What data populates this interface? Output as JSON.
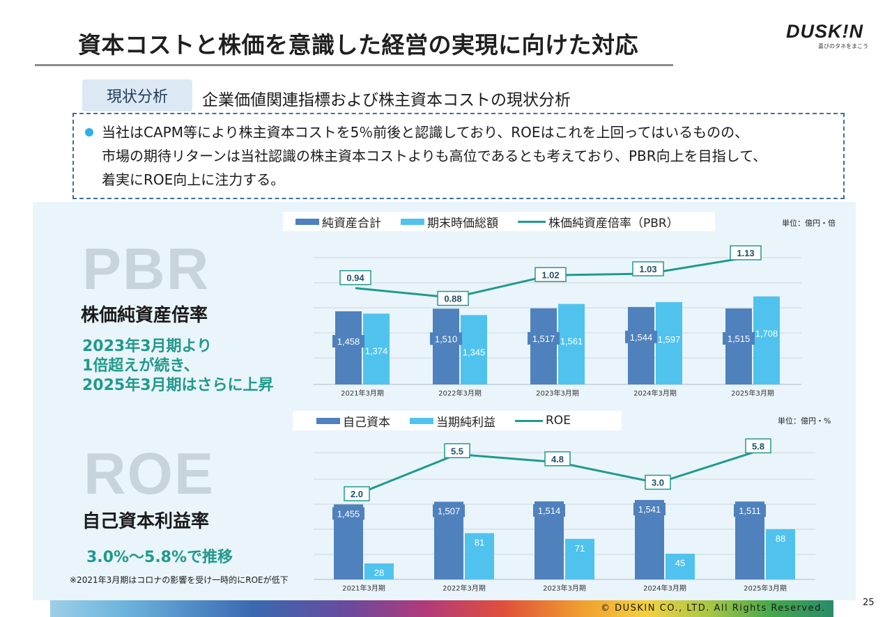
{
  "header": {
    "title": "資本コストと株価を意識した経営の実現に向けた対応",
    "logo_text": "DUSK!N",
    "logo_tagline": "喜びのタネをまこう"
  },
  "section": {
    "badge": "現状分析",
    "subtitle": "企業価値関連指標および株主資本コストの現状分析"
  },
  "note": {
    "lines": [
      "当社はCAPM等により株主資本コストを5％前後と認識しており、ROEはこれを上回ってはいるものの、",
      "市場の期待リターンは当社認識の株主資本コストよりも高位であるとも考えており、PBR向上を目指して、",
      "着実にROE向上に注力する。"
    ]
  },
  "pbr": {
    "big_label": "PBR",
    "name": "株価純資産倍率",
    "desc_lines": [
      "2023年3月期より",
      "1倍超えが続き、",
      "2025年3月期はさらに上昇"
    ]
  },
  "roe": {
    "big_label": "ROE",
    "name": "自己資本利益率",
    "desc": "3.0%～5.8%で推移",
    "note": "※2021年3月期はコロナの影響を受け一時的にROEが低下"
  },
  "colors": {
    "dark_bar": "#4f81bd",
    "light_bar": "#4fc3ee",
    "line": "#1f9a8c",
    "panel": "#eaf4fb"
  },
  "chart_data": [
    {
      "type": "bar",
      "unit": "単位：億円・倍",
      "categories": [
        "2021年3月期",
        "2022年3月期",
        "2023年3月期",
        "2024年3月期",
        "2025年3月期"
      ],
      "series": [
        {
          "name": "純資産合計",
          "kind": "bar",
          "values": [
            1458,
            1510,
            1517,
            1544,
            1515
          ],
          "labels": [
            "1,458",
            "1,510",
            "1,517",
            "1,544",
            "1,515"
          ]
        },
        {
          "name": "期末時価総額",
          "kind": "bar",
          "values": [
            1374,
            1345,
            1561,
            1597,
            1708
          ],
          "labels": [
            "1,374",
            "1,345",
            "1,561",
            "1,597",
            "1,708"
          ]
        },
        {
          "name": "株価純資産倍率（PBR）",
          "kind": "line",
          "values": [
            0.94,
            0.88,
            1.02,
            1.03,
            1.13
          ],
          "labels": [
            "0.94",
            "0.88",
            "1.02",
            "1.03",
            "1.13"
          ]
        }
      ],
      "bar_ylim": [
        0,
        1800
      ],
      "line_ylim": [
        0.6,
        1.2
      ]
    },
    {
      "type": "bar",
      "unit": "単位：億円・%",
      "categories": [
        "2021年3月期",
        "2022年3月期",
        "2023年3月期",
        "2024年3月期",
        "2025年3月期"
      ],
      "series": [
        {
          "name": "自己資本",
          "kind": "bar",
          "values": [
            1455,
            1507,
            1514,
            1541,
            1511
          ],
          "labels": [
            "1,455",
            "1,507",
            "1,514",
            "1,541",
            "1,511"
          ]
        },
        {
          "name": "当期純利益",
          "kind": "bar",
          "values": [
            28,
            81,
            71,
            45,
            88
          ],
          "labels": [
            "28",
            "81",
            "71",
            "45",
            "88"
          ]
        },
        {
          "name": "ROE",
          "kind": "line",
          "values": [
            2.0,
            5.5,
            4.8,
            3.0,
            5.8
          ],
          "labels": [
            "2.0",
            "5.5",
            "4.8",
            "3.0",
            "5.8"
          ]
        }
      ]
    }
  ],
  "footer": {
    "copyright": "© DUSKIN CO., LTD. All Rights Reserved.",
    "page": "25"
  }
}
